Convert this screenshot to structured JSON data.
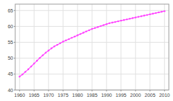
{
  "chart_data": {
    "type": "line",
    "x": [
      1960,
      1961,
      1962,
      1963,
      1964,
      1965,
      1966,
      1967,
      1968,
      1969,
      1970,
      1971,
      1972,
      1973,
      1974,
      1975,
      1976,
      1977,
      1978,
      1979,
      1980,
      1981,
      1982,
      1983,
      1984,
      1985,
      1986,
      1987,
      1988,
      1989,
      1990,
      1991,
      1992,
      1993,
      1994,
      1995,
      1996,
      1997,
      1998,
      1999,
      2000,
      2001,
      2002,
      2003,
      2004,
      2005,
      2006,
      2007,
      2008,
      2009,
      2010
    ],
    "values": [
      44.2,
      44.9,
      45.7,
      46.5,
      47.4,
      48.3,
      49.2,
      50.1,
      50.9,
      51.7,
      52.4,
      53.1,
      53.7,
      54.2,
      54.7,
      55.2,
      55.6,
      56.0,
      56.4,
      56.8,
      57.2,
      57.6,
      58.0,
      58.4,
      58.8,
      59.2,
      59.5,
      59.8,
      60.1,
      60.4,
      60.7,
      61.0,
      61.2,
      61.4,
      61.6,
      61.8,
      62.0,
      62.2,
      62.4,
      62.6,
      62.8,
      63.0,
      63.2,
      63.4,
      63.6,
      63.8,
      64.0,
      64.2,
      64.4,
      64.6,
      64.8
    ],
    "color": "#ff44ff",
    "marker": "circle",
    "xlim": [
      1958.5,
      2011.5
    ],
    "ylim": [
      40,
      67
    ],
    "xticks": [
      1960,
      1965,
      1970,
      1975,
      1980,
      1985,
      1990,
      1995,
      2000,
      2005,
      2010
    ],
    "yticks": [
      40,
      45,
      50,
      55,
      60,
      65
    ],
    "grid": true
  }
}
